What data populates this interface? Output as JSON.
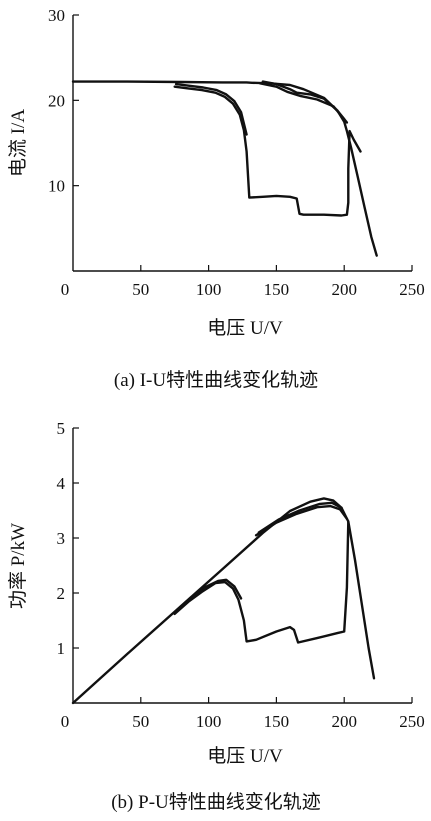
{
  "chart_data": [
    {
      "type": "line",
      "caption": "(a) I-U特性曲线变化轨迹",
      "xlabel": "电压 U/V",
      "ylabel": "电流 I/A",
      "xlim": [
        0,
        250
      ],
      "ylim": [
        0,
        30
      ],
      "xticks": [
        "0",
        "50",
        "100",
        "150",
        "200",
        "250"
      ],
      "yticks": [
        "10",
        "20",
        "30"
      ],
      "grid": false,
      "series": [
        {
          "x": [
            0,
            40,
            80,
            110,
            128,
            132,
            145,
            160,
            170,
            185,
            195,
            200,
            202,
            205,
            210,
            215,
            220,
            224
          ],
          "y": [
            22.2,
            22.2,
            22.15,
            22.1,
            22.1,
            22.05,
            22.0,
            21.8,
            21.3,
            20.3,
            18.8,
            17.5,
            16.4,
            14.5,
            11.0,
            7.5,
            4.0,
            1.8
          ]
        },
        {
          "x": [
            75,
            85,
            95,
            105,
            112,
            118,
            123,
            126,
            128,
            130,
            140,
            150,
            160,
            165,
            167,
            170,
            185,
            198,
            202,
            203,
            203,
            204,
            207,
            212
          ],
          "y": [
            21.6,
            21.4,
            21.2,
            20.9,
            20.4,
            19.6,
            18.3,
            16.5,
            14.0,
            8.6,
            8.7,
            8.8,
            8.7,
            8.5,
            6.7,
            6.6,
            6.6,
            6.5,
            6.6,
            8.0,
            12.0,
            16.4,
            15.4,
            14.0
          ]
        },
        {
          "x": [
            76,
            86,
            96,
            106,
            113,
            119,
            124,
            128
          ],
          "y": [
            21.9,
            21.7,
            21.5,
            21.2,
            20.7,
            19.9,
            18.6,
            16.0
          ]
        },
        {
          "x": [
            140,
            150,
            160,
            165,
            175,
            185,
            195,
            202
          ],
          "y": [
            22.2,
            21.9,
            21.3,
            20.9,
            20.7,
            20.2,
            18.8,
            17.4
          ]
        },
        {
          "x": [
            138,
            150,
            158,
            168,
            180,
            192,
            200
          ],
          "y": [
            22.0,
            21.6,
            21.0,
            20.5,
            20.1,
            19.3,
            17.8
          ]
        }
      ]
    },
    {
      "type": "line",
      "caption": "(b) P-U特性曲线变化轨迹",
      "xlabel": "电压 U/V",
      "ylabel": "功率 P/kW",
      "xlim": [
        0,
        250
      ],
      "ylim": [
        0,
        5
      ],
      "xticks": [
        "0",
        "50",
        "100",
        "150",
        "200",
        "250"
      ],
      "yticks": [
        "1",
        "2",
        "3",
        "4",
        "5"
      ],
      "grid": false,
      "series": [
        {
          "x": [
            0,
            40,
            80,
            110,
            140,
            160,
            175,
            185,
            192,
            198,
            203,
            208,
            213,
            218,
            222
          ],
          "y": [
            0,
            0.89,
            1.77,
            2.43,
            3.09,
            3.49,
            3.66,
            3.72,
            3.68,
            3.55,
            3.3,
            2.6,
            1.8,
            1.0,
            0.45
          ]
        },
        {
          "x": [
            75,
            85,
            95,
            105,
            112,
            118,
            122,
            126,
            128,
            135,
            150,
            160,
            163,
            166,
            180,
            195,
            200,
            202,
            203
          ],
          "y": [
            1.62,
            1.84,
            2.02,
            2.18,
            2.2,
            2.08,
            1.88,
            1.5,
            1.12,
            1.15,
            1.3,
            1.38,
            1.33,
            1.1,
            1.18,
            1.27,
            1.3,
            2.1,
            3.3
          ]
        },
        {
          "x": [
            77,
            87,
            97,
            107,
            113,
            119,
            124
          ],
          "y": [
            1.7,
            1.92,
            2.1,
            2.22,
            2.24,
            2.12,
            1.9
          ]
        },
        {
          "x": [
            135,
            150,
            165,
            180,
            190,
            197,
            202
          ],
          "y": [
            3.05,
            3.28,
            3.44,
            3.56,
            3.58,
            3.52,
            3.35
          ]
        },
        {
          "x": [
            137,
            152,
            167,
            182,
            191,
            198
          ],
          "y": [
            3.1,
            3.34,
            3.5,
            3.62,
            3.64,
            3.55
          ]
        }
      ]
    }
  ]
}
